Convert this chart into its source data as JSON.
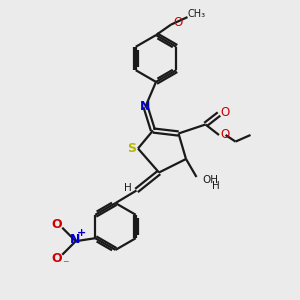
{
  "bg_color": "#ebebeb",
  "bond_color": "#1a1a1a",
  "s_color": "#b8b800",
  "n_color": "#0000cc",
  "o_color": "#cc0000",
  "line_width": 1.6,
  "figsize": [
    3.0,
    3.0
  ],
  "dpi": 100,
  "xlim": [
    0,
    10
  ],
  "ylim": [
    0,
    10
  ]
}
